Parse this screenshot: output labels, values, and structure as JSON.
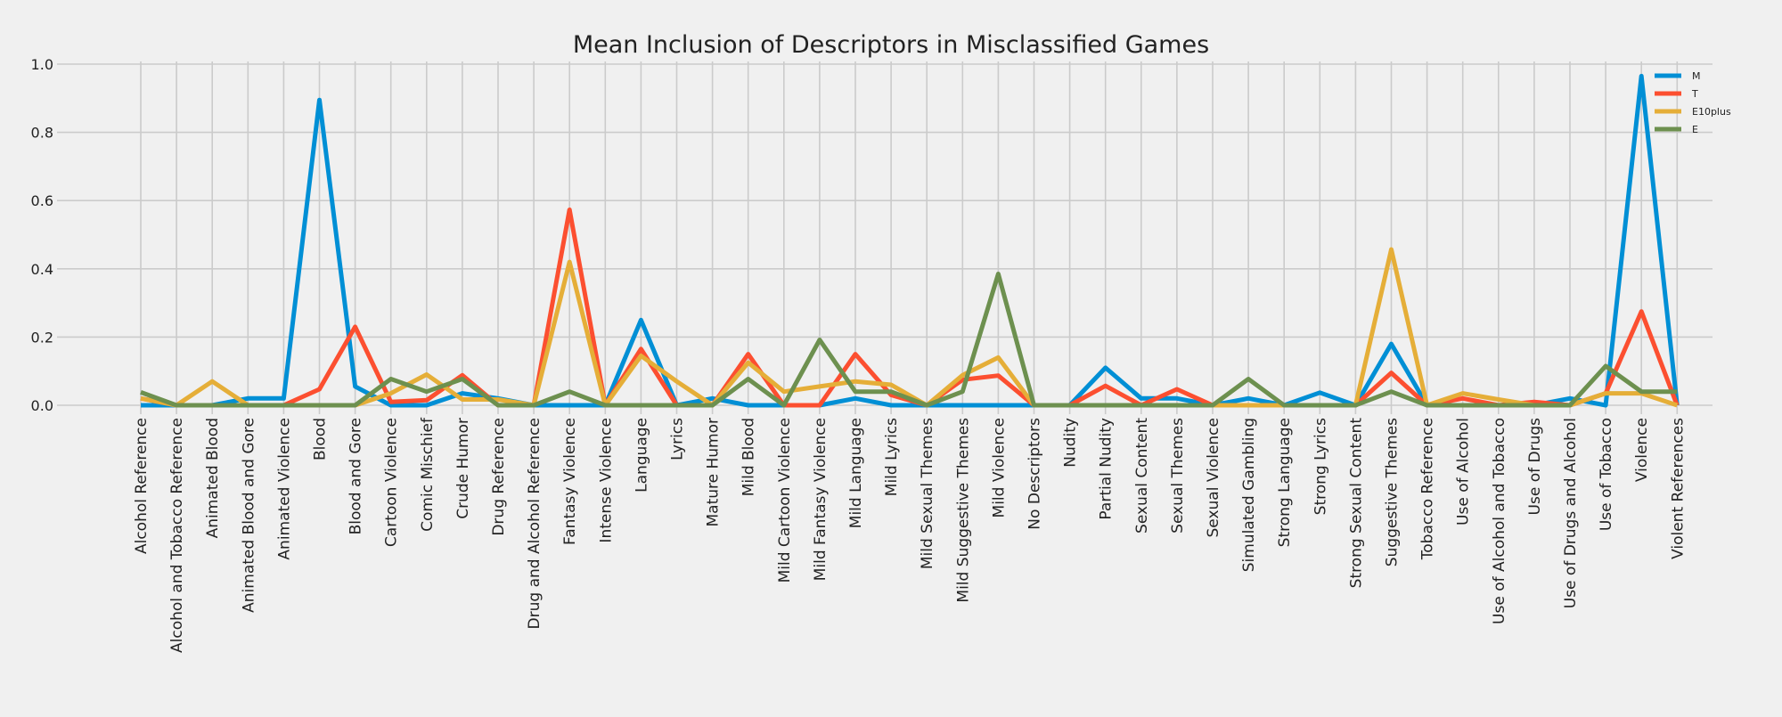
{
  "chart_data": {
    "type": "line",
    "title": "Mean Inclusion of Descriptors in Misclassified Games",
    "xlabel": "",
    "ylabel": "",
    "ylim": [
      0,
      1.0
    ],
    "yticks": [
      "0.0",
      "0.2",
      "0.4",
      "0.6",
      "0.8",
      "1.0"
    ],
    "grid": true,
    "legend_position": "top-right",
    "categories": [
      "Alcohol Reference",
      "Alcohol and Tobacco Reference",
      "Animated Blood",
      "Animated Blood and Gore",
      "Animated Violence",
      "Blood",
      "Blood and Gore",
      "Cartoon Violence",
      "Comic Mischief",
      "Crude Humor",
      "Drug Reference",
      "Drug and Alcohol Reference",
      "Fantasy Violence",
      "Intense Violence",
      "Language",
      "Lyrics",
      "Mature Humor",
      "Mild Blood",
      "Mild Cartoon Violence",
      "Mild Fantasy Violence",
      "Mild Language",
      "Mild Lyrics",
      "Mild Sexual Themes",
      "Mild Suggestive Themes",
      "Mild Violence",
      "No Descriptors",
      "Nudity",
      "Partial Nudity",
      "Sexual Content",
      "Sexual Themes",
      "Sexual Violence",
      "Simulated Gambling",
      "Strong Language",
      "Strong Lyrics",
      "Strong Sexual Content",
      "Suggestive Themes",
      "Tobacco Reference",
      "Use of Alcohol",
      "Use of Alcohol and Tobacco",
      "Use of Drugs",
      "Use of Drugs and Alcohol",
      "Use of Tobacco",
      "Violence",
      "Violent References"
    ],
    "series": [
      {
        "name": "M",
        "color": "#008fd5",
        "values": [
          0.0,
          0.0,
          0.0,
          0.02,
          0.02,
          0.895,
          0.055,
          0.0,
          0.0,
          0.035,
          0.02,
          0.0,
          0.0,
          0.0,
          0.25,
          0.0,
          0.02,
          0.0,
          0.0,
          0.0,
          0.02,
          0.0,
          0.0,
          0.0,
          0.0,
          0.0,
          0.0,
          0.11,
          0.02,
          0.02,
          0.0,
          0.02,
          0.0,
          0.037,
          0.0,
          0.18,
          0.0,
          0.0,
          0.0,
          0.0,
          0.02,
          0.0,
          0.965,
          0.0
        ]
      },
      {
        "name": "T",
        "color": "#fc4f30",
        "values": [
          0.02,
          0.0,
          0.0,
          0.0,
          0.0,
          0.047,
          0.23,
          0.01,
          0.015,
          0.088,
          0.0,
          0.0,
          0.573,
          0.0,
          0.165,
          0.0,
          0.0,
          0.15,
          0.0,
          0.0,
          0.15,
          0.03,
          0.0,
          0.075,
          0.087,
          0.0,
          0.0,
          0.057,
          0.0,
          0.047,
          0.0,
          0.0,
          0.0,
          0.0,
          0.0,
          0.095,
          0.0,
          0.02,
          0.0,
          0.01,
          0.0,
          0.035,
          0.275,
          0.0
        ]
      },
      {
        "name": "E10plus",
        "color": "#e5ae38",
        "values": [
          0.02,
          0.0,
          0.07,
          0.0,
          0.0,
          0.0,
          0.0,
          0.035,
          0.09,
          0.017,
          0.017,
          0.0,
          0.42,
          0.0,
          0.145,
          0.07,
          0.0,
          0.125,
          0.04,
          0.055,
          0.07,
          0.06,
          0.0,
          0.088,
          0.14,
          0.0,
          0.0,
          0.0,
          0.0,
          0.0,
          0.0,
          0.0,
          0.0,
          0.0,
          0.0,
          0.457,
          0.0,
          0.035,
          0.017,
          0.0,
          0.0,
          0.035,
          0.035,
          0.0
        ]
      },
      {
        "name": "E",
        "color": "#6d904f",
        "values": [
          0.038,
          0.0,
          0.0,
          0.0,
          0.0,
          0.0,
          0.0,
          0.077,
          0.04,
          0.077,
          0.0,
          0.0,
          0.04,
          0.0,
          0.0,
          0.0,
          0.0,
          0.077,
          0.0,
          0.192,
          0.04,
          0.04,
          0.0,
          0.04,
          0.385,
          0.0,
          0.0,
          0.0,
          0.0,
          0.0,
          0.0,
          0.077,
          0.0,
          0.0,
          0.0,
          0.04,
          0.0,
          0.0,
          0.0,
          0.0,
          0.0,
          0.115,
          0.04,
          0.04
        ]
      }
    ]
  }
}
